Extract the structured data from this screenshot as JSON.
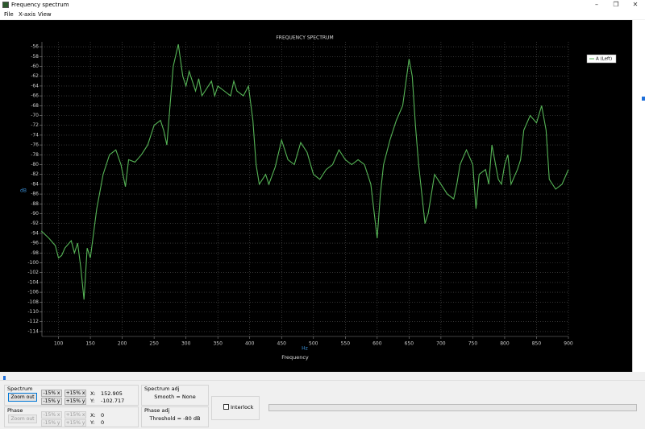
{
  "window": {
    "title": "Frequency spectrum"
  },
  "menu": [
    "File",
    "X-axis",
    "View"
  ],
  "chart_data": {
    "type": "line",
    "title": "FREQUENCY SPECTRUM",
    "x_label": "Frequency",
    "x_unit": "Hz",
    "y_label": "dB",
    "x": [
      73,
      85,
      95,
      100,
      105,
      110,
      120,
      125,
      130,
      135,
      140,
      145,
      150,
      160,
      170,
      180,
      190,
      198,
      205,
      210,
      220,
      230,
      240,
      250,
      260,
      265,
      270,
      275,
      280,
      288,
      295,
      300,
      305,
      310,
      315,
      320,
      325,
      330,
      340,
      345,
      350,
      360,
      370,
      375,
      380,
      390,
      398,
      402,
      405,
      410,
      415,
      420,
      425,
      430,
      440,
      450,
      460,
      470,
      480,
      490,
      500,
      510,
      520,
      530,
      540,
      550,
      560,
      570,
      580,
      590,
      600,
      605,
      610,
      620,
      630,
      640,
      650,
      655,
      660,
      665,
      670,
      675,
      680,
      690,
      700,
      710,
      720,
      725,
      730,
      740,
      750,
      755,
      760,
      770,
      775,
      780,
      790,
      795,
      800,
      805,
      810,
      820,
      825,
      830,
      840,
      850,
      858,
      865,
      870,
      880,
      890,
      900
    ],
    "series": [
      {
        "name": "A (Left)",
        "color": "#56b456",
        "values": [
          -93.5,
          -95,
          -96.5,
          -99,
          -98.5,
          -97,
          -95.5,
          -98,
          -96,
          -101,
          -107.5,
          -97,
          -99,
          -89,
          -82,
          -78,
          -77,
          -80,
          -84.5,
          -79,
          -79.5,
          -78,
          -76,
          -72,
          -71,
          -73,
          -76,
          -68,
          -60,
          -55.5,
          -62,
          -64,
          -61,
          -63,
          -65,
          -62.5,
          -66,
          -65,
          -63,
          -66,
          -64,
          -65,
          -66,
          -63,
          -65,
          -66,
          -64,
          -68,
          -71,
          -80,
          -84,
          -83,
          -82,
          -84,
          -80.5,
          -75,
          -79,
          -80,
          -75.5,
          -77.5,
          -82,
          -83,
          -81,
          -80,
          -77,
          -79,
          -80,
          -79,
          -80,
          -84,
          -95,
          -86,
          -80,
          -75,
          -71,
          -68,
          -58.5,
          -62,
          -72,
          -80,
          -86,
          -92,
          -90,
          -82,
          -84,
          -86,
          -87,
          -84,
          -80,
          -77,
          -80,
          -89,
          -82,
          -81,
          -84,
          -76,
          -83,
          -84,
          -80,
          -78,
          -84,
          -81,
          -79,
          -73,
          -70,
          -71.5,
          -68,
          -73,
          -83,
          -85,
          -84,
          -81
        ]
      }
    ],
    "xlim": [
      74,
      900
    ],
    "xticks": [
      100,
      150,
      200,
      250,
      300,
      350,
      400,
      450,
      500,
      550,
      600,
      650,
      700,
      750,
      800,
      850,
      900
    ],
    "ylim": [
      -115,
      -55
    ],
    "yticks": [
      -56,
      -58,
      -60,
      -62,
      -64,
      -66,
      -68,
      -70,
      -72,
      -74,
      -76,
      -78,
      -80,
      -82,
      -84,
      -86,
      -88,
      -90,
      -92,
      -94,
      -96,
      -98,
      -100,
      -102,
      -104,
      -106,
      -108,
      -110,
      -112,
      -114
    ],
    "grid": true,
    "legend": "top-right"
  },
  "controls": {
    "spectrum": {
      "label": "Spectrum",
      "zoom_out": "Zoom out",
      "minus_x": "-15% x",
      "plus_x": "+15% x",
      "minus_y": "-15% y",
      "plus_y": "+15% y",
      "x_label": "X:",
      "x_value": "152.905",
      "y_label": "Y:",
      "y_value": "-102.717"
    },
    "phase": {
      "label": "Phase",
      "zoom_out": "Zoom out",
      "minus_x": "-15% x",
      "plus_x": "+15% x",
      "minus_y": "-15% y",
      "plus_y": "+15% y",
      "x_label": "X:",
      "x_value": "0",
      "y_label": "Y:",
      "y_value": "0"
    },
    "spectrum_adj": {
      "label": "Spectrum adj",
      "text": "Smooth = None"
    },
    "phase_adj": {
      "label": "Phase adj",
      "text": "Threshold = -80 dB"
    },
    "interlock": "Interlock"
  }
}
